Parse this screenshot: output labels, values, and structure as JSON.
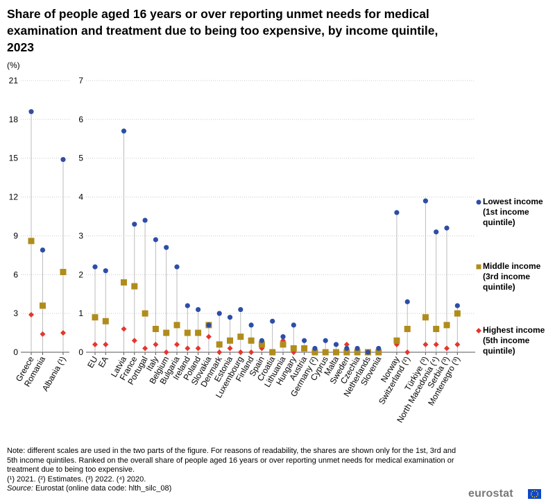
{
  "title": "Share of people aged 16 years or over reporting unmet needs for medical examination and treatment due to being too expensive, by income quintile, 2023",
  "unit_label": "(%)",
  "colors": {
    "lowest": "#2d4ea6",
    "middle": "#b08c1c",
    "highest": "#e3372c",
    "grid": "#c8c8c8",
    "stem": "#bbbbbb",
    "axis": "#555555"
  },
  "chart_data": {
    "type": "scatter",
    "left_panel": {
      "ylim": [
        0,
        21
      ],
      "ticks": [
        "0",
        "3",
        "6",
        "9",
        "12",
        "15",
        "18",
        "21"
      ],
      "categories": [
        "Greece",
        "Romania",
        "Albania (¹)"
      ],
      "groups": [
        2,
        1
      ],
      "series": [
        {
          "name": "Lowest income (1st income quintile)",
          "values": [
            18.6,
            7.9,
            14.9
          ]
        },
        {
          "name": "Middle income (3rd income quintile)",
          "values": [
            8.6,
            3.6,
            6.2
          ]
        },
        {
          "name": "Highest income (5th income quintile)",
          "values": [
            2.9,
            1.4,
            1.5
          ]
        }
      ]
    },
    "right_panel": {
      "ylim": [
        0,
        7
      ],
      "ticks": [
        "0",
        "1",
        "2",
        "3",
        "4",
        "5",
        "6",
        "7"
      ],
      "categories": [
        "EU",
        "EA",
        "Latvia",
        "France",
        "Portugal",
        "Italy",
        "Belgium",
        "Bulgaria",
        "Ireland",
        "Poland",
        "Slovakia",
        "Denmark",
        "Estonia",
        "Luxembourg",
        "Finland",
        "Spain",
        "Croatia",
        "Lithuania",
        "Hungary",
        "Austria",
        "Germany (²)",
        "Cyprus",
        "Malta",
        "Sweden",
        "Czechia",
        "Netherlands",
        "Slovenia",
        "Norway",
        "Switzerland (²)",
        "Türkiye (³)",
        "North Macedonia (⁴)",
        "Serbia (³)",
        "Montenegro (³)"
      ],
      "groups": [
        2,
        25,
        2,
        4
      ],
      "series": [
        {
          "name": "Lowest income (1st income quintile)",
          "values": [
            2.2,
            2.1,
            5.7,
            3.3,
            3.4,
            2.9,
            2.7,
            2.2,
            1.2,
            1.1,
            0.7,
            1.0,
            0.9,
            1.1,
            0.7,
            0.3,
            0.8,
            0.4,
            0.7,
            0.3,
            0.1,
            0.3,
            0.2,
            0.1,
            0.1,
            0.0,
            0.1,
            3.6,
            1.3,
            3.9,
            3.1,
            3.2,
            1.2
          ]
        },
        {
          "name": "Middle income (3rd income quintile)",
          "values": [
            0.9,
            0.8,
            1.8,
            1.7,
            1.0,
            0.6,
            0.5,
            0.7,
            0.5,
            0.5,
            0.7,
            0.2,
            0.3,
            0.4,
            0.3,
            0.2,
            0.0,
            0.2,
            0.1,
            0.1,
            0.0,
            0.0,
            0.0,
            0.0,
            0.0,
            0.0,
            0.0,
            0.3,
            0.6,
            0.9,
            0.6,
            0.7,
            1.0
          ]
        },
        {
          "name": "Highest income (5th income quintile)",
          "values": [
            0.2,
            0.2,
            0.6,
            0.3,
            0.1,
            0.2,
            0.0,
            0.2,
            0.1,
            0.1,
            0.4,
            0.0,
            0.1,
            0.0,
            0.0,
            0.1,
            0.0,
            0.3,
            0.0,
            0.1,
            0.0,
            0.0,
            0.0,
            0.2,
            0.0,
            0.0,
            0.0,
            0.2,
            0.0,
            0.2,
            0.2,
            0.1,
            0.2
          ]
        }
      ]
    }
  },
  "legend": [
    {
      "label": "Lowest income (1st income quintile)",
      "lines": [
        "Lowest income",
        "(1st income",
        "quintile)"
      ],
      "symbol": "circle"
    },
    {
      "label": "Middle income (3rd income quintile)",
      "lines": [
        "Middle income",
        "(3rd income",
        "quintile)"
      ],
      "symbol": "square"
    },
    {
      "label": "Highest income (5th income quintile)",
      "lines": [
        "Highest income",
        "(5th income",
        "quintile)"
      ],
      "symbol": "diamond"
    }
  ],
  "notes": {
    "note": "Note: different scales are used in the two parts of the figure. For reasons of readability, the shares are shown only for the 1st, 3rd and 5th income quintiles. Ranked on the overall share of people aged 16 years or over reporting unmet needs for medical examination or treatment due to being too expensive.",
    "footnotes": "(¹) 2021. (²) Estimates. (³) 2022. (⁴) 2020.",
    "source_label": "Source:",
    "source_text": "Eurostat (online data code: hlth_silc_08)"
  },
  "logo_text": "eurostat"
}
